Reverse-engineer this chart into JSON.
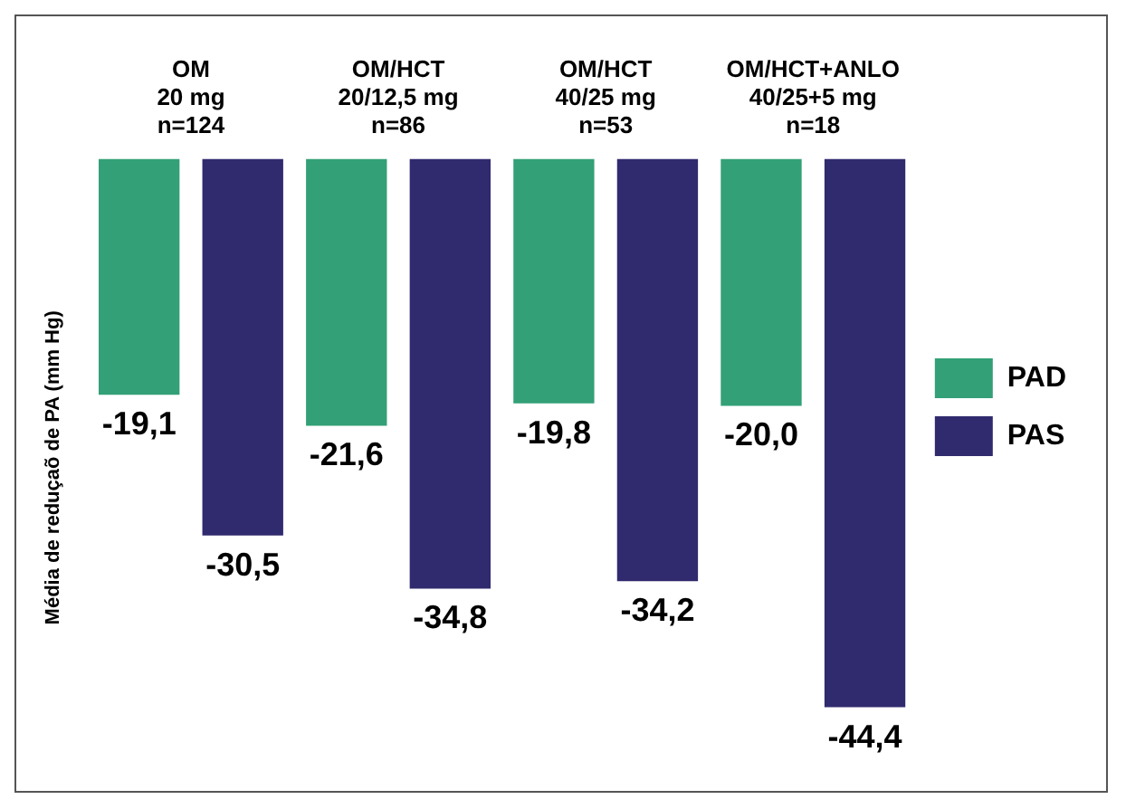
{
  "chart_data": {
    "type": "bar",
    "ylabel": "Média de reduçaõ de PA (mm Hg)",
    "categories": [
      "OM\n20 mg\nn=124",
      "OM/HCT\n20/12,5 mg\nn=86",
      "OM/HCT\n40/25 mg\nn=53",
      "OM/HCT+ANLO\n40/25+5 mg\nn=18"
    ],
    "series": [
      {
        "name": "PAD",
        "color": "#33a077",
        "values": [
          -19.1,
          -21.6,
          -19.8,
          -20.0
        ],
        "value_labels": [
          "-19,1",
          "-21,6",
          "-19,8",
          "-20,0"
        ]
      },
      {
        "name": "PAS",
        "color": "#302a6e",
        "values": [
          -30.5,
          -34.8,
          -34.2,
          -44.4
        ],
        "value_labels": [
          "-30,5",
          "-34,8",
          "-34,2",
          "-44,4"
        ]
      }
    ],
    "tick_labels": "x",
    "grid": false,
    "legend": "right"
  }
}
